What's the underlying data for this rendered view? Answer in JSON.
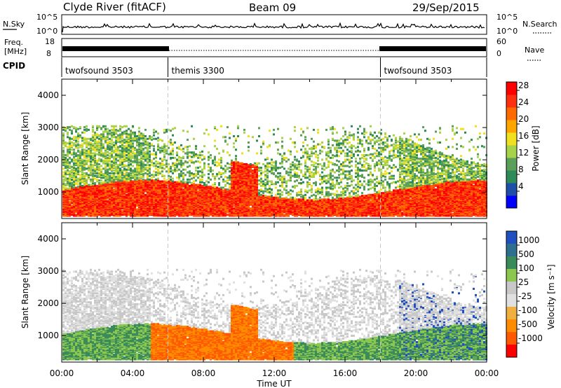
{
  "header": {
    "station": "Clyde River (fitACF)",
    "beam": "Beam 09",
    "date": "29/Sep/2015"
  },
  "strips": {
    "nsky_label": "N.Sky",
    "nsky_ticks": [
      "10^5",
      "10^0"
    ],
    "nsearch_label": "N.Search",
    "nsearch_ticks": [
      "10^5",
      "10^0"
    ],
    "freq_label_line1": "Freq.",
    "freq_label_line2": "[MHz]",
    "freq_ticks": [
      "18",
      "8"
    ],
    "nave_label": "Nave",
    "nave_ticks": [
      "60",
      "0"
    ],
    "cpid_label": "CPID",
    "cpid_segments": [
      {
        "label": "twofsound 3503",
        "start_hour": 0,
        "end_hour": 6
      },
      {
        "label": "themis 3300",
        "start_hour": 6,
        "end_hour": 18
      },
      {
        "label": "twofsound 3503",
        "start_hour": 18,
        "end_hour": 24
      }
    ]
  },
  "colors": {
    "power_scale": [
      "#0000ff",
      "#1f4fa8",
      "#2e8b57",
      "#5aa05a",
      "#a8d24a",
      "#f0e020",
      "#ffa500",
      "#ff6a00",
      "#ff3010",
      "#ff0000"
    ],
    "velocity_scale": [
      "#2050c0",
      "#2e6f8f",
      "#3a8a5a",
      "#8cc850",
      "#c8c8c8",
      "#e0e0e0",
      "#f0b040",
      "#ff8c00",
      "#ff5a00",
      "#ff0000"
    ]
  },
  "chart_data": [
    {
      "type": "heatmap",
      "panel": "power",
      "ylabel": "Slant Range [km]",
      "xlabel": "Time UT",
      "x_ticks": [
        "00:00",
        "04:00",
        "08:00",
        "12:00",
        "16:00",
        "20:00",
        "00:00"
      ],
      "xlim_hours": [
        0,
        24
      ],
      "y_ticks": [
        1000,
        2000,
        3000,
        4000
      ],
      "ylim": [
        180,
        4500
      ],
      "colorbar_label": "Power [dB]",
      "colorbar_ticks": [
        4,
        8,
        12,
        16,
        20,
        24,
        28
      ],
      "colorbar_range": [
        0,
        30
      ]
    },
    {
      "type": "heatmap",
      "panel": "velocity",
      "ylabel": "Slant Range [km]",
      "xlabel": "Time UT",
      "x_ticks": [
        "00:00",
        "04:00",
        "08:00",
        "12:00",
        "16:00",
        "20:00",
        "00:00"
      ],
      "xlim_hours": [
        0,
        24
      ],
      "y_ticks": [
        1000,
        2000,
        3000,
        4000
      ],
      "ylim": [
        180,
        4500
      ],
      "colorbar_label": "Velocity [m s⁻¹]",
      "colorbar_ticks": [
        1000,
        500,
        100,
        25,
        -25,
        -100,
        -500,
        -1000
      ],
      "colorbar_range": [
        -1000,
        1000
      ]
    }
  ]
}
